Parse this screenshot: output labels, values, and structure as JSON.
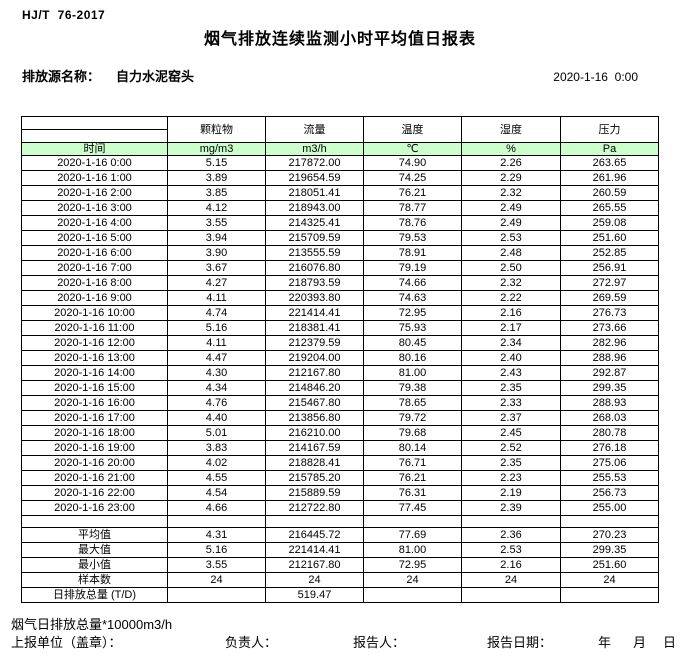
{
  "header": {
    "standard": "HJ/T  76-2017",
    "title": "烟气排放连续监测小时平均值日报表",
    "source_label": "排放源名称：",
    "source_name": "自力水泥窑头",
    "datetime": "2020-1-16  0:00"
  },
  "table": {
    "time_header": "时间",
    "columns": [
      {
        "name": "颗粒物",
        "unit": "mg/m3"
      },
      {
        "name": "流量",
        "unit": "m3/h"
      },
      {
        "name": "温度",
        "unit": "℃"
      },
      {
        "name": "湿度",
        "unit": "%"
      },
      {
        "name": "压力",
        "unit": "Pa"
      }
    ],
    "rows": [
      {
        "time": "2020-1-16 0:00",
        "values": [
          "5.15",
          "217872.00",
          "74.90",
          "2.26",
          "263.65"
        ]
      },
      {
        "time": "2020-1-16 1:00",
        "values": [
          "3.89",
          "219654.59",
          "74.25",
          "2.29",
          "261.96"
        ]
      },
      {
        "time": "2020-1-16 2:00",
        "values": [
          "3.85",
          "218051.41",
          "76.21",
          "2.32",
          "260.59"
        ]
      },
      {
        "time": "2020-1-16 3:00",
        "values": [
          "4.12",
          "218943.00",
          "78.77",
          "2.49",
          "265.55"
        ]
      },
      {
        "time": "2020-1-16 4:00",
        "values": [
          "3.55",
          "214325.41",
          "78.76",
          "2.49",
          "259.08"
        ]
      },
      {
        "time": "2020-1-16 5:00",
        "values": [
          "3.94",
          "215709.59",
          "79.53",
          "2.53",
          "251.60"
        ]
      },
      {
        "time": "2020-1-16 6:00",
        "values": [
          "3.90",
          "213555.59",
          "78.91",
          "2.48",
          "252.85"
        ]
      },
      {
        "time": "2020-1-16 7:00",
        "values": [
          "3.67",
          "216076.80",
          "79.19",
          "2.50",
          "256.91"
        ]
      },
      {
        "time": "2020-1-16 8:00",
        "values": [
          "4.27",
          "218793.59",
          "74.66",
          "2.32",
          "272.97"
        ]
      },
      {
        "time": "2020-1-16 9:00",
        "values": [
          "4.11",
          "220393.80",
          "74.63",
          "2.22",
          "269.59"
        ]
      },
      {
        "time": "2020-1-16 10:00",
        "values": [
          "4.74",
          "221414.41",
          "72.95",
          "2.16",
          "276.73"
        ]
      },
      {
        "time": "2020-1-16 11:00",
        "values": [
          "5.16",
          "218381.41",
          "75.93",
          "2.17",
          "273.66"
        ]
      },
      {
        "time": "2020-1-16 12:00",
        "values": [
          "4.11",
          "212379.59",
          "80.45",
          "2.34",
          "282.96"
        ]
      },
      {
        "time": "2020-1-16 13:00",
        "values": [
          "4.47",
          "219204.00",
          "80.16",
          "2.40",
          "288.96"
        ]
      },
      {
        "time": "2020-1-16 14:00",
        "values": [
          "4.30",
          "212167.80",
          "81.00",
          "2.43",
          "292.87"
        ]
      },
      {
        "time": "2020-1-16 15:00",
        "values": [
          "4.34",
          "214846.20",
          "79.38",
          "2.35",
          "299.35"
        ]
      },
      {
        "time": "2020-1-16 16:00",
        "values": [
          "4.76",
          "215467.80",
          "78.65",
          "2.33",
          "288.93"
        ]
      },
      {
        "time": "2020-1-16 17:00",
        "values": [
          "4.40",
          "213856.80",
          "79.72",
          "2.37",
          "268.03"
        ]
      },
      {
        "time": "2020-1-16 18:00",
        "values": [
          "5.01",
          "216210.00",
          "79.68",
          "2.45",
          "280.78"
        ]
      },
      {
        "time": "2020-1-16 19:00",
        "values": [
          "3.83",
          "214167.59",
          "80.14",
          "2.52",
          "276.18"
        ]
      },
      {
        "time": "2020-1-16 20:00",
        "values": [
          "4.02",
          "218828.41",
          "76.71",
          "2.35",
          "275.06"
        ]
      },
      {
        "time": "2020-1-16 21:00",
        "values": [
          "4.55",
          "215785.20",
          "76.21",
          "2.23",
          "255.53"
        ]
      },
      {
        "time": "2020-1-16 22:00",
        "values": [
          "4.54",
          "215889.59",
          "76.31",
          "2.19",
          "256.73"
        ]
      },
      {
        "time": "2020-1-16 23:00",
        "values": [
          "4.66",
          "212722.80",
          "77.45",
          "2.39",
          "255.00"
        ]
      }
    ],
    "summary": [
      {
        "label": "平均值",
        "values": [
          "4.31",
          "216445.72",
          "77.69",
          "2.36",
          "270.23"
        ]
      },
      {
        "label": "最大值",
        "values": [
          "5.16",
          "221414.41",
          "81.00",
          "2.53",
          "299.35"
        ]
      },
      {
        "label": "最小值",
        "values": [
          "3.55",
          "212167.80",
          "72.95",
          "2.16",
          "251.60"
        ]
      },
      {
        "label": "样本数",
        "values": [
          "24",
          "24",
          "24",
          "24",
          "24"
        ]
      },
      {
        "label": "日排放总量 (T/D)",
        "values": [
          "",
          "519.47",
          "",
          "",
          ""
        ]
      }
    ]
  },
  "footer": {
    "note": "烟气日排放总量*10000m3/h",
    "unit_label": "上报单位（盖章）：",
    "responsible_label": "负责人：",
    "reporter_label": "报告人：",
    "report_date_label": "报告日期：",
    "year_label": "年",
    "month_label": "月",
    "day_label": "日"
  },
  "colors": {
    "highlight_green": "#ccffcc",
    "border": "#000000"
  }
}
